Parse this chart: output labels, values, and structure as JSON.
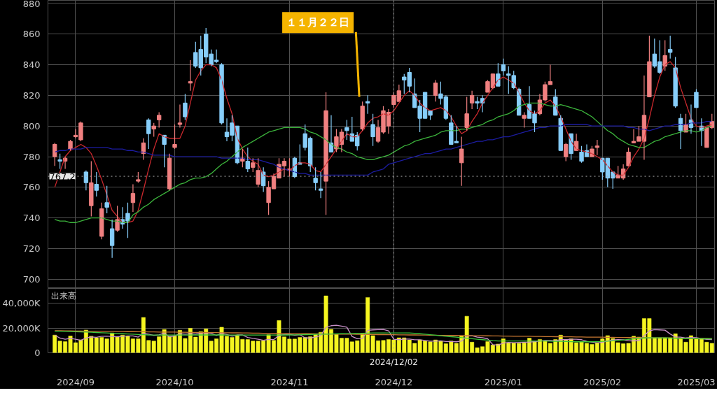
{
  "chart_data": [
    {
      "type": "candlestick",
      "categories": [
        null,
        null,
        null,
        null,
        "2024/09",
        null,
        null,
        null,
        null,
        null,
        null,
        null,
        null,
        null,
        null,
        null,
        null,
        null,
        null,
        null,
        null,
        null,
        null,
        "2024/10",
        null,
        null,
        null,
        null,
        null,
        null,
        null,
        null,
        null,
        null,
        null,
        null,
        null,
        null,
        null,
        null,
        null,
        null,
        null,
        null,
        null,
        "2024/11",
        null,
        null,
        null,
        null,
        null,
        null,
        null,
        null,
        null,
        null,
        null,
        null,
        null,
        null,
        null,
        null,
        null,
        null,
        null,
        "2024/12",
        null,
        null,
        null,
        null,
        null,
        null,
        null,
        null,
        null,
        null,
        null,
        null,
        null,
        null,
        null,
        null,
        null,
        null,
        null,
        null,
        "2025/01",
        null,
        null,
        null,
        null,
        null,
        null,
        null,
        null,
        null,
        null,
        null,
        null,
        null,
        null,
        null,
        null,
        null,
        null,
        "2025/02",
        null,
        null,
        null,
        null,
        null,
        null,
        null,
        null,
        null,
        null,
        null,
        null,
        null,
        null,
        null,
        null,
        null,
        "2025/03",
        null,
        null,
        null
      ],
      "ohlc": [
        [
          780,
          789,
          774,
          788
        ],
        [
          778,
          782,
          772,
          777
        ],
        [
          777,
          780,
          772,
          779
        ],
        [
          785,
          791,
          784,
          790
        ],
        [
          793,
          798,
          792,
          794
        ],
        [
          791,
          803,
          790,
          802
        ],
        [
          770,
          771,
          758,
          763
        ],
        [
          748,
          777,
          741,
          763
        ],
        [
          762,
          770,
          754,
          758
        ],
        [
          728,
          750,
          726,
          746
        ],
        [
          750,
          761,
          743,
          747
        ],
        [
          733,
          739,
          714,
          722
        ],
        [
          732,
          748,
          731,
          739
        ],
        [
          739,
          747,
          733,
          736
        ],
        [
          743,
          750,
          727,
          738
        ],
        [
          750,
          762,
          744,
          756
        ],
        [
          764,
          770,
          763,
          765
        ],
        [
          782,
          792,
          778,
          789
        ],
        [
          804,
          805,
          785,
          795
        ],
        [
          798,
          802,
          793,
          800
        ],
        [
          804,
          809,
          799,
          807
        ],
        [
          794,
          794,
          773,
          788
        ],
        [
          759,
          782,
          758,
          779
        ],
        [
          786,
          801,
          785,
          788
        ],
        [
          801,
          814,
          799,
          802
        ],
        [
          815,
          821,
          804,
          806
        ],
        [
          828,
          843,
          823,
          829
        ],
        [
          848,
          855,
          838,
          839
        ],
        [
          850,
          859,
          833,
          838
        ],
        [
          860,
          864,
          841,
          845
        ],
        [
          847,
          850,
          839,
          840
        ],
        [
          843,
          850,
          841,
          842
        ],
        [
          840,
          841,
          801,
          802
        ],
        [
          796,
          805,
          790,
          793
        ],
        [
          802,
          807,
          790,
          794
        ],
        [
          800,
          800,
          775,
          776
        ],
        [
          777,
          785,
          773,
          779
        ],
        [
          777,
          786,
          770,
          772
        ],
        [
          773,
          779,
          770,
          776
        ],
        [
          762,
          779,
          760,
          771
        ],
        [
          770,
          773,
          757,
          761
        ],
        [
          750,
          764,
          742,
          760
        ],
        [
          759,
          769,
          759,
          767
        ],
        [
          766,
          779,
          766,
          775
        ],
        [
          774,
          779,
          767,
          777
        ],
        [
          771,
          779,
          767,
          772
        ],
        [
          779,
          780,
          766,
          767
        ],
        [
          776,
          788,
          775,
          775
        ],
        [
          795,
          801,
          784,
          786
        ],
        [
          792,
          793,
          770,
          774
        ],
        [
          766,
          773,
          758,
          763
        ],
        [
          759,
          770,
          753,
          758
        ],
        [
          764,
          822,
          742,
          810
        ],
        [
          789,
          807,
          783,
          783
        ],
        [
          785,
          798,
          783,
          793
        ],
        [
          788,
          798,
          783,
          796
        ],
        [
          799,
          804,
          791,
          797
        ],
        [
          795,
          806,
          790,
          790
        ],
        [
          794,
          796,
          784,
          787
        ],
        [
          798,
          816,
          797,
          813
        ],
        [
          816,
          820,
          808,
          815
        ],
        [
          801,
          808,
          787,
          793
        ],
        [
          790,
          804,
          789,
          799
        ],
        [
          796,
          813,
          795,
          810
        ],
        [
          800,
          811,
          795,
          809
        ],
        [
          814,
          822,
          812,
          820
        ],
        [
          816,
          827,
          816,
          823
        ],
        [
          832,
          834,
          821,
          830
        ],
        [
          835,
          838,
          822,
          826
        ],
        [
          821,
          831,
          812,
          812
        ],
        [
          813,
          817,
          796,
          805
        ],
        [
          822,
          822,
          805,
          805
        ],
        [
          810,
          810,
          804,
          807
        ],
        [
          820,
          830,
          816,
          828
        ],
        [
          821,
          829,
          814,
          818
        ],
        [
          819,
          820,
          804,
          805
        ],
        [
          802,
          807,
          788,
          788
        ],
        [
          790,
          800,
          789,
          789
        ],
        [
          776,
          793,
          761,
          785
        ],
        [
          799,
          819,
          797,
          808
        ],
        [
          815,
          823,
          811,
          820
        ],
        [
          816,
          819,
          811,
          815
        ],
        [
          818,
          820,
          809,
          815
        ],
        [
          822,
          830,
          822,
          829
        ],
        [
          825,
          834,
          824,
          834
        ],
        [
          834,
          841,
          826,
          826
        ],
        [
          840,
          844,
          833,
          836
        ],
        [
          834,
          839,
          821,
          833
        ],
        [
          833,
          836,
          824,
          825
        ],
        [
          824,
          825,
          807,
          807
        ],
        [
          805,
          809,
          799,
          807
        ],
        [
          814,
          826,
          805,
          805
        ],
        [
          808,
          810,
          796,
          802
        ],
        [
          808,
          821,
          807,
          817
        ],
        [
          817,
          829,
          816,
          827
        ],
        [
          827,
          840,
          827,
          829
        ],
        [
          819,
          824,
          807,
          807
        ],
        [
          805,
          807,
          784,
          784
        ],
        [
          780,
          789,
          777,
          788
        ],
        [
          795,
          795,
          778,
          782
        ],
        [
          784,
          795,
          784,
          790
        ],
        [
          783,
          787,
          776,
          777
        ],
        [
          784,
          788,
          780,
          780
        ],
        [
          780,
          787,
          780,
          785
        ],
        [
          786,
          791,
          781,
          787
        ],
        [
          779,
          779,
          765,
          770
        ],
        [
          779,
          779,
          760,
          766
        ],
        [
          770,
          770,
          759,
          766
        ],
        [
          766,
          774,
          766,
          768
        ],
        [
          766,
          775,
          765,
          772
        ],
        [
          774,
          786,
          774,
          783
        ],
        [
          789,
          798,
          789,
          790
        ],
        [
          790,
          800,
          790,
          793
        ],
        [
          790,
          833,
          778,
          807
        ],
        [
          819,
          859,
          819,
          842
        ],
        [
          847,
          857,
          838,
          839
        ],
        [
          842,
          856,
          834,
          835
        ],
        [
          839,
          856,
          836,
          846
        ],
        [
          850,
          859,
          844,
          848
        ],
        [
          838,
          845,
          812,
          813
        ],
        [
          805,
          808,
          785,
          797
        ],
        [
          796,
          808,
          796,
          801
        ],
        [
          804,
          814,
          795,
          799
        ],
        [
          822,
          824,
          812,
          812
        ],
        [
          800,
          805,
          787,
          797
        ],
        [
          786,
          799,
          786,
          799
        ],
        [
          799,
          808,
          798,
          803
        ]
      ],
      "colors": [
        "#f08080",
        "#87cefa",
        "#f08080",
        "#f08080",
        "#f08080",
        "#f08080",
        "#87cefa",
        "#f08080",
        "#87cefa",
        "#f08080",
        "#87cefa",
        "#87cefa",
        "#f08080",
        "#87cefa",
        "#87cefa",
        "#f08080",
        "#f08080",
        "#f08080",
        "#87cefa",
        "#f08080",
        "#f08080",
        "#87cefa",
        "#f08080",
        "#f08080",
        "#f08080",
        "#87cefa",
        "#f08080",
        "#87cefa",
        "#87cefa",
        "#87cefa",
        "#87cefa",
        "#87cefa",
        "#87cefa",
        "#87cefa",
        "#87cefa",
        "#87cefa",
        "#f08080",
        "#87cefa",
        "#f08080",
        "#f08080",
        "#87cefa",
        "#f08080",
        "#f08080",
        "#f08080",
        "#f08080",
        "#f08080",
        "#87cefa",
        "#87cefa",
        "#87cefa",
        "#87cefa",
        "#87cefa",
        "#87cefa",
        "#f08080",
        "#87cefa",
        "#f08080",
        "#f08080",
        "#87cefa",
        "#87cefa",
        "#87cefa",
        "#f08080",
        "#87cefa",
        "#87cefa",
        "#f08080",
        "#f08080",
        "#f08080",
        "#f08080",
        "#f08080",
        "#87cefa",
        "#87cefa",
        "#87cefa",
        "#87cefa",
        "#87cefa",
        "#87cefa",
        "#f08080",
        "#87cefa",
        "#87cefa",
        "#87cefa",
        "#87cefa",
        "#f08080",
        "#f08080",
        "#f08080",
        "#87cefa",
        "#87cefa",
        "#f08080",
        "#f08080",
        "#87cefa",
        "#87cefa",
        "#87cefa",
        "#87cefa",
        "#87cefa",
        "#f08080",
        "#87cefa",
        "#87cefa",
        "#f08080",
        "#f08080",
        "#f08080",
        "#87cefa",
        "#87cefa",
        "#f08080",
        "#87cefa",
        "#f08080",
        "#87cefa",
        "#87cefa",
        "#f08080",
        "#f08080",
        "#87cefa",
        "#87cefa",
        "#87cefa",
        "#f08080",
        "#f08080",
        "#f08080",
        "#f08080",
        "#f08080",
        "#f08080",
        "#f08080",
        "#87cefa",
        "#87cefa",
        "#f08080",
        "#87cefa",
        "#87cefa",
        "#87cefa",
        "#f08080",
        "#87cefa",
        "#87cefa",
        "#87cefa",
        "#f08080",
        "#f08080"
      ],
      "series": [
        {
          "type": "line",
          "color": "#c8282d",
          "values": [
            760,
            770,
            780,
            784,
            786,
            788,
            786,
            782,
            774,
            765,
            755,
            745,
            741,
            737,
            737,
            738,
            745,
            758,
            772,
            785,
            795,
            793,
            792,
            792,
            792,
            800,
            815,
            830,
            836,
            840,
            840,
            838,
            830,
            818,
            808,
            792,
            785,
            780,
            777,
            775,
            768,
            767,
            768,
            770,
            772,
            771,
            774,
            776,
            776,
            775,
            771,
            770,
            775,
            780,
            785,
            790,
            795,
            793,
            793,
            797,
            802,
            805,
            806,
            808,
            807,
            810,
            815,
            820,
            823,
            820,
            815,
            812,
            810,
            811,
            812,
            810,
            806,
            800,
            795,
            797,
            803,
            808,
            815,
            820,
            825,
            830,
            832,
            830,
            828,
            822,
            815,
            810,
            808,
            810,
            815,
            817,
            813,
            806,
            798,
            790,
            785,
            784,
            783,
            782,
            780,
            778,
            774,
            770,
            768,
            768,
            773,
            780,
            785,
            792,
            805,
            820,
            832,
            840,
            842,
            838,
            825,
            815,
            805,
            800,
            799,
            800,
            801
          ]
        },
        {
          "type": "line",
          "color": "#3cb43c",
          "values": [
            739,
            738,
            738,
            737,
            737,
            738,
            739,
            740,
            740,
            740,
            739,
            738,
            738,
            737,
            737,
            742,
            744,
            747,
            749,
            752,
            754,
            756,
            758,
            760,
            762,
            763,
            765,
            766,
            766,
            767,
            769,
            772,
            775,
            777,
            780,
            783,
            786,
            788,
            790,
            792,
            794,
            796,
            797,
            798,
            799,
            799,
            799,
            799,
            798,
            796,
            795,
            793,
            791,
            788,
            786,
            785,
            783,
            782,
            780,
            779,
            778,
            778,
            779,
            780,
            781,
            783,
            785,
            787,
            788,
            790,
            791,
            792,
            793,
            794,
            796,
            797,
            797,
            797,
            798,
            798,
            799,
            800,
            801,
            803,
            804,
            806,
            807,
            808,
            810,
            813,
            814,
            815,
            815,
            815,
            814,
            813,
            813,
            814,
            813,
            812,
            811,
            810,
            808,
            806,
            803,
            800,
            797,
            795,
            792,
            790,
            788,
            787,
            786,
            786,
            788,
            790,
            791,
            793,
            794,
            795,
            796,
            797,
            797,
            796,
            797,
            799,
            800
          ]
        },
        {
          "type": "line",
          "color": "#1c1ca0",
          "values": [
            783,
            784,
            784,
            785,
            785,
            785,
            786,
            786,
            786,
            786,
            786,
            785,
            785,
            785,
            784,
            784,
            783,
            783,
            782,
            781,
            781,
            781,
            781,
            780,
            780,
            780,
            780,
            780,
            780,
            780,
            780,
            780,
            779,
            779,
            779,
            779,
            779,
            778,
            778,
            778,
            777,
            776,
            775,
            773,
            772,
            771,
            770,
            769,
            769,
            768,
            768,
            768,
            768,
            768,
            768,
            768,
            768,
            768,
            768,
            768,
            768,
            770,
            771,
            772,
            775,
            776,
            777,
            778,
            779,
            780,
            781,
            782,
            782,
            783,
            784,
            785,
            785,
            786,
            787,
            788,
            789,
            790,
            790,
            791,
            791,
            792,
            793,
            793,
            794,
            795,
            796,
            797,
            798,
            799,
            799,
            800,
            800,
            800,
            801,
            801,
            801,
            801,
            801,
            800,
            800,
            800,
            800,
            800,
            800,
            800,
            799,
            799,
            798,
            798,
            797,
            798,
            799,
            800,
            800,
            801,
            801,
            801,
            802,
            802,
            802,
            803,
            803
          ]
        }
      ],
      "ylim": [
        694,
        882
      ],
      "yticks": [
        700,
        720,
        740,
        760,
        780,
        800,
        820,
        840,
        860,
        880
      ],
      "grid": true,
      "tick_labels": "y",
      "ref_lines": [
        {
          "axis": "y",
          "value": 767.2,
          "label": "767.2",
          "line_style": "dotted",
          "color": "#aaaaaa"
        },
        {
          "axis": "x",
          "value": "2024/12",
          "line_style": "dotted",
          "color": "#aaaaaa"
        }
      ],
      "annotations": [
        "１１月２２日"
      ]
    },
    {
      "type": "bar",
      "title": "出来高",
      "categories": [
        null,
        null,
        null,
        null,
        "2024/09",
        null,
        null,
        null,
        null,
        null,
        null,
        null,
        null,
        null,
        null,
        null,
        null,
        null,
        null,
        null,
        null,
        null,
        null,
        "2024/10",
        null,
        null,
        null,
        null,
        null,
        null,
        null,
        null,
        null,
        null,
        null,
        null,
        null,
        null,
        null,
        null,
        null,
        null,
        null,
        null,
        null,
        "2024/11",
        null,
        null,
        null,
        null,
        null,
        null,
        null,
        null,
        null,
        null,
        null,
        null,
        null,
        null,
        null,
        null,
        null,
        null,
        null,
        "2024/12",
        null,
        null,
        null,
        null,
        null,
        null,
        null,
        null,
        null,
        null,
        null,
        null,
        null,
        null,
        null,
        null,
        null,
        null,
        null,
        null,
        "2025/01",
        null,
        null,
        null,
        null,
        null,
        null,
        null,
        null,
        null,
        null,
        null,
        null,
        null,
        null,
        null,
        null,
        null,
        null,
        "2025/02",
        null,
        null,
        null,
        null,
        null,
        null,
        null,
        null,
        null,
        null,
        null,
        null,
        null,
        null,
        null,
        null,
        null,
        "2025/03",
        null,
        null,
        null
      ],
      "series": [
        {
          "type": "bar",
          "color": "#f5f520",
          "values": [
            14300,
            9500,
            9000,
            13600,
            8200,
            10400,
            18400,
            13400,
            12100,
            12500,
            11300,
            16000,
            13000,
            14300,
            13600,
            11300,
            11300,
            28600,
            10000,
            9500,
            13000,
            18800,
            13400,
            13600,
            18200,
            11600,
            19800,
            12700,
            17100,
            19300,
            9500,
            11300,
            20700,
            13400,
            12500,
            14300,
            10900,
            10700,
            9500,
            9500,
            9800,
            14600,
            10000,
            26100,
            12900,
            11100,
            11100,
            12500,
            12500,
            13000,
            14800,
            16600,
            46000,
            18900,
            14800,
            11800,
            11800,
            8900,
            9800,
            15400,
            44700,
            13900,
            9800,
            10000,
            10700,
            10400,
            12100,
            12100,
            10400,
            7700,
            10400,
            9500,
            8900,
            10400,
            9500,
            7300,
            9500,
            7700,
            13600,
            29600,
            8600,
            4100,
            5000,
            9100,
            6300,
            7100,
            11300,
            8000,
            8000,
            7700,
            8000,
            11800,
            9500,
            10700,
            9800,
            7700,
            10700,
            14300,
            10400,
            11300,
            8200,
            8900,
            7700,
            6800,
            8200,
            11300,
            13900,
            11600,
            8200,
            7300,
            7700,
            13400,
            12700,
            27700,
            27700,
            12100,
            12100,
            12100,
            12100,
            15400,
            11800,
            8600,
            13900,
            11300,
            11800,
            8600,
            7700
          ]
        },
        {
          "type": "line",
          "color": "#c890c8",
          "values": [
            14300,
            11900,
            10900,
            11600,
            10900,
            10100,
            11900,
            12800,
            12500,
            13400,
            13500,
            13100,
            13000,
            13400,
            13600,
            13600,
            12700,
            15800,
            15000,
            14100,
            14500,
            16000,
            12900,
            13700,
            15400,
            15100,
            15300,
            15200,
            15900,
            16100,
            15700,
            14000,
            15600,
            14800,
            13500,
            14400,
            14400,
            12400,
            11600,
            11000,
            10100,
            10800,
            10700,
            14000,
            14700,
            14900,
            14200,
            14700,
            12000,
            12000,
            12800,
            13900,
            20600,
            21900,
            22200,
            21600,
            20700,
            13200,
            11400,
            11500,
            18100,
            18500,
            18700,
            18800,
            17800,
            11000,
            10600,
            11100,
            11100,
            10500,
            10500,
            10000,
            9400,
            9400,
            9700,
            9100,
            9100,
            8900,
            9500,
            13500,
            13800,
            12700,
            12200,
            11300,
            6600,
            6300,
            7800,
            8400,
            8100,
            8400,
            8600,
            8700,
            9000,
            9500,
            10000,
            9900,
            9700,
            10600,
            10600,
            10900,
            11000,
            10600,
            9300,
            8600,
            8000,
            8600,
            9600,
            10400,
            10600,
            10500,
            9700,
            9600,
            9900,
            13800,
            17800,
            18700,
            18500,
            18300,
            15200,
            12800,
            12700,
            12000,
            12400,
            12200,
            11500,
            10800,
            10700
          ]
        },
        {
          "type": "line",
          "color": "#c87832",
          "values": [
            17800,
            17800,
            17700,
            17700,
            17600,
            17600,
            17500,
            17500,
            17400,
            17400,
            17300,
            17300,
            17200,
            17200,
            17100,
            17100,
            17000,
            17000,
            16900,
            16900,
            16800,
            16800,
            16700,
            16700,
            16600,
            16600,
            16500,
            16500,
            16400,
            16400,
            16300,
            16300,
            16200,
            16200,
            16100,
            16100,
            16000,
            16000,
            15900,
            15900,
            15800,
            15800,
            15700,
            15700,
            15600,
            15600,
            15500,
            15500,
            15400,
            15400,
            15300,
            15300,
            15200,
            15200,
            15100,
            15100,
            15000,
            15000,
            14900,
            14900,
            14800,
            14800,
            14700,
            14700,
            14600,
            14600,
            14500,
            14500,
            14400,
            14400,
            14300,
            14300,
            14200,
            14200,
            14100,
            14100,
            14000,
            14000,
            13900,
            13900,
            13800,
            13800,
            13700,
            13700,
            13600,
            13600,
            13500,
            13500,
            13400,
            13400,
            13300,
            13300,
            13200,
            13200,
            13100,
            13100,
            13000,
            13000,
            12900,
            12900,
            12800,
            12800,
            12700,
            12700,
            12600,
            12600,
            12500,
            12500,
            12400,
            12400,
            12300,
            12300,
            12200,
            12200,
            12100,
            12100,
            12000,
            12000,
            11900,
            11900,
            11800,
            11800,
            11700,
            11700,
            11600,
            11600,
            11500
          ]
        },
        {
          "type": "line",
          "color": "#3cc83c",
          "values": [
            17500,
            17400,
            17300,
            17200,
            17000,
            16900,
            16800,
            16600,
            16400,
            16200,
            16000,
            15800,
            15600,
            15400,
            15200,
            15000,
            14800,
            14600,
            14400,
            14300,
            14300,
            14300,
            14300,
            14300,
            14300,
            14300,
            14300,
            14400,
            14400,
            14400,
            14400,
            14400,
            14400,
            14300,
            14300,
            14300,
            14300,
            14300,
            14300,
            14300,
            14300,
            14300,
            14300,
            14300,
            14400,
            14400,
            14500,
            14600,
            14700,
            14800,
            14900,
            15000,
            15100,
            15200,
            15300,
            15400,
            15500,
            15600,
            15700,
            15800,
            15900,
            16000,
            16000,
            16000,
            16000,
            16000,
            16000,
            16000,
            16000,
            15800,
            15400,
            15000,
            14600,
            14200,
            13800,
            13400,
            13000,
            12600,
            12200,
            11800,
            11400,
            11000,
            10600,
            10200,
            9800,
            9500,
            9500,
            9500,
            9500,
            9500,
            9500,
            9500,
            9500,
            9500,
            9500,
            9400,
            9300,
            9200,
            9100,
            9000,
            8900,
            8900,
            8900,
            8900,
            9000,
            9200,
            9400,
            9700,
            10000,
            10400,
            10800,
            11200,
            11600,
            12000,
            12100,
            12100,
            12100,
            12000,
            11900,
            11800,
            11700,
            11600,
            11500,
            11400,
            11300,
            11300,
            11300
          ]
        }
      ],
      "ylim": [
        0,
        52000
      ],
      "yticks": [
        {
          "value": 0,
          "label": "0"
        },
        {
          "value": 20000,
          "label": "20,000K"
        },
        {
          "value": 40000,
          "label": "40,000K"
        }
      ],
      "grid": true,
      "ref_lines": [
        {
          "axis": "x",
          "value": "2024/12",
          "label": "2024/12/02",
          "line_style": "dotted",
          "color": "#aaaaaa"
        }
      ]
    }
  ]
}
